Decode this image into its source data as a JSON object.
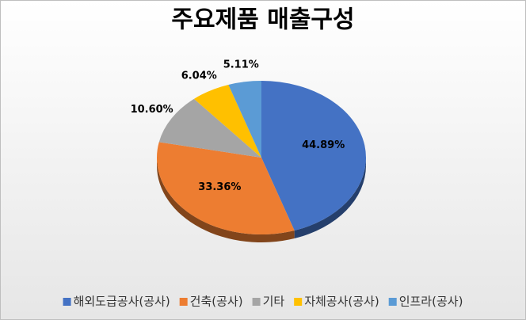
{
  "chart_data": {
    "type": "pie",
    "title": "주요제품 매출구성",
    "categories": [
      "해외도급공사(공사)",
      "건축(공사)",
      "기타",
      "자체공사(공사)",
      "인프라(공사)"
    ],
    "values": [
      44.89,
      33.36,
      10.6,
      6.04,
      5.11
    ],
    "value_labels": [
      "44.89%",
      "33.36%",
      "10.60%",
      "6.04%",
      "5.11%"
    ],
    "colors": [
      "#4472c4",
      "#ed7d31",
      "#a5a5a5",
      "#ffc000",
      "#5b9bd5"
    ],
    "legend": "bottom"
  }
}
